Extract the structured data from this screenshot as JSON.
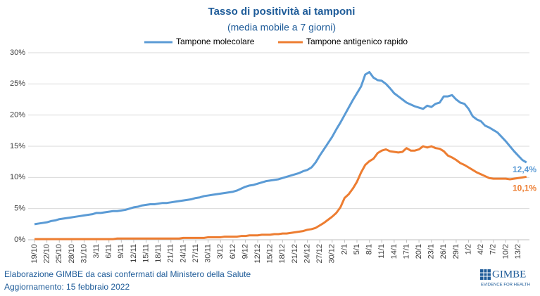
{
  "chart_data": {
    "type": "line",
    "title": "Tasso di positività ai tamponi",
    "subtitle": "(media mobile a 7 giorni)",
    "categories": [
      "19/10",
      null,
      null,
      "22/10",
      null,
      null,
      "25/10",
      null,
      null,
      "28/10",
      null,
      null,
      "31/10",
      null,
      null,
      "3/11",
      null,
      null,
      "6/11",
      null,
      null,
      "9/11",
      null,
      null,
      "12/11",
      null,
      null,
      "15/11",
      null,
      null,
      "18/11",
      null,
      null,
      "21/11",
      null,
      null,
      "24/11",
      null,
      null,
      "27/11",
      null,
      null,
      "30/11",
      null,
      null,
      "3/12",
      null,
      null,
      "6/12",
      null,
      null,
      "9/12",
      null,
      null,
      "12/12",
      null,
      null,
      "15/12",
      null,
      null,
      "18/12",
      null,
      null,
      "21/12",
      null,
      null,
      "24/12",
      null,
      null,
      "27/12",
      null,
      null,
      "30/12",
      null,
      null,
      "2/1",
      null,
      null,
      "5/1",
      null,
      null,
      "8/1",
      null,
      null,
      "11/1",
      null,
      null,
      "14/1",
      null,
      null,
      "17/1",
      null,
      null,
      "20/1",
      null,
      null,
      "23/1",
      null,
      null,
      "26/1",
      null,
      null,
      "29/1",
      null,
      null,
      "1/2",
      null,
      null,
      "4/2",
      null,
      null,
      "7/2",
      null,
      null,
      "10/2",
      null,
      null,
      "13/2",
      null,
      null
    ],
    "series": [
      {
        "name": "Tampone molecolare",
        "color": "#5b9bd5",
        "values": [
          2.5,
          2.6,
          2.7,
          2.8,
          3.0,
          3.1,
          3.3,
          3.4,
          3.5,
          3.6,
          3.7,
          3.8,
          3.9,
          4.0,
          4.1,
          4.3,
          4.3,
          4.4,
          4.5,
          4.6,
          4.6,
          4.7,
          4.8,
          5.0,
          5.2,
          5.3,
          5.5,
          5.6,
          5.7,
          5.7,
          5.8,
          5.9,
          5.9,
          6.0,
          6.1,
          6.2,
          6.3,
          6.4,
          6.5,
          6.7,
          6.8,
          7.0,
          7.1,
          7.2,
          7.3,
          7.4,
          7.5,
          7.6,
          7.7,
          7.9,
          8.2,
          8.5,
          8.7,
          8.8,
          9.0,
          9.2,
          9.4,
          9.5,
          9.6,
          9.7,
          9.9,
          10.1,
          10.3,
          10.5,
          10.7,
          11.0,
          11.2,
          11.6,
          12.4,
          13.5,
          14.5,
          15.5,
          16.5,
          17.7,
          18.8,
          20.0,
          21.2,
          22.4,
          23.5,
          24.6,
          26.5,
          26.9,
          26.0,
          25.6,
          25.5,
          25.0,
          24.3,
          23.5,
          23.0,
          22.5,
          22.0,
          21.7,
          21.4,
          21.2,
          21.0,
          21.5,
          21.3,
          21.8,
          22.0,
          23.0,
          23.0,
          23.2,
          22.5,
          22.0,
          21.8,
          21.0,
          19.8,
          19.3,
          19.0,
          18.3,
          18.0,
          17.6,
          17.2,
          16.5,
          15.8,
          15.0,
          14.2,
          13.5,
          12.8,
          12.4
        ],
        "value_labels": [
          null,
          null,
          null,
          null,
          null,
          null,
          null,
          null,
          null,
          null,
          null,
          null,
          null,
          null,
          null,
          null,
          null,
          null,
          null,
          null,
          null,
          null,
          null,
          null,
          null,
          null,
          null,
          null,
          null,
          null,
          null,
          null,
          null,
          null,
          null,
          null,
          null,
          null,
          null,
          null,
          null,
          null,
          null,
          null,
          null,
          null,
          null,
          null,
          null,
          null,
          null,
          null,
          null,
          null,
          null,
          null,
          null,
          null,
          null,
          null,
          null,
          null,
          null,
          null,
          null,
          null,
          null,
          null,
          null,
          null,
          null,
          null,
          null,
          null,
          null,
          null,
          null,
          null,
          null,
          null,
          null,
          null,
          null,
          null,
          null,
          null,
          null,
          null,
          null,
          null,
          null,
          null,
          null,
          null,
          null,
          null,
          null,
          null,
          null,
          null,
          null,
          null,
          null,
          null,
          null,
          null,
          null,
          null,
          null,
          null,
          null,
          null,
          null,
          null,
          null,
          null,
          null,
          null,
          null,
          "12,4%"
        ]
      },
      {
        "name": "Tampone antigenico rapido",
        "color": "#ed7d31",
        "values": [
          0.1,
          0.1,
          0.1,
          0.1,
          0.1,
          0.1,
          0.1,
          0.1,
          0.1,
          0.1,
          0.1,
          0.1,
          0.1,
          0.1,
          0.1,
          0.1,
          0.1,
          0.1,
          0.1,
          0.1,
          0.2,
          0.2,
          0.2,
          0.2,
          0.2,
          0.2,
          0.2,
          0.2,
          0.2,
          0.2,
          0.2,
          0.2,
          0.2,
          0.2,
          0.2,
          0.2,
          0.3,
          0.3,
          0.3,
          0.3,
          0.3,
          0.3,
          0.4,
          0.4,
          0.4,
          0.4,
          0.5,
          0.5,
          0.5,
          0.5,
          0.6,
          0.6,
          0.7,
          0.7,
          0.7,
          0.8,
          0.8,
          0.8,
          0.9,
          0.9,
          1.0,
          1.0,
          1.1,
          1.2,
          1.3,
          1.4,
          1.6,
          1.7,
          1.9,
          2.3,
          2.7,
          3.2,
          3.7,
          4.3,
          5.2,
          6.7,
          7.3,
          8.2,
          9.3,
          10.8,
          12.0,
          12.6,
          13.0,
          13.9,
          14.3,
          14.5,
          14.2,
          14.1,
          14.0,
          14.1,
          14.7,
          14.3,
          14.3,
          14.5,
          15.0,
          14.8,
          15.0,
          14.7,
          14.6,
          14.2,
          13.5,
          13.2,
          12.8,
          12.3,
          12.0,
          11.6,
          11.2,
          10.8,
          10.5,
          10.2,
          9.9,
          9.8,
          9.8,
          9.8,
          9.8,
          9.7,
          9.8,
          9.9,
          10.0,
          10.1
        ],
        "value_labels": [
          null,
          null,
          null,
          null,
          null,
          null,
          null,
          null,
          null,
          null,
          null,
          null,
          null,
          null,
          null,
          null,
          null,
          null,
          null,
          null,
          null,
          null,
          null,
          null,
          null,
          null,
          null,
          null,
          null,
          null,
          null,
          null,
          null,
          null,
          null,
          null,
          null,
          null,
          null,
          null,
          null,
          null,
          null,
          null,
          null,
          null,
          null,
          null,
          null,
          null,
          null,
          null,
          null,
          null,
          null,
          null,
          null,
          null,
          null,
          null,
          null,
          null,
          null,
          null,
          null,
          null,
          null,
          null,
          null,
          null,
          null,
          null,
          null,
          null,
          null,
          null,
          null,
          null,
          null,
          null,
          null,
          null,
          null,
          null,
          null,
          null,
          null,
          null,
          null,
          null,
          null,
          null,
          null,
          null,
          null,
          null,
          null,
          null,
          null,
          null,
          null,
          null,
          null,
          null,
          null,
          null,
          null,
          null,
          null,
          null,
          null,
          null,
          null,
          null,
          null,
          null,
          null,
          null,
          null,
          "10,1%"
        ]
      }
    ],
    "ylim": [
      0,
      30
    ],
    "yticks": [
      {
        "value": 0,
        "label": "0%"
      },
      {
        "value": 5,
        "label": "5%"
      },
      {
        "value": 10,
        "label": "10%"
      },
      {
        "value": 15,
        "label": "15%"
      },
      {
        "value": 20,
        "label": "20%"
      },
      {
        "value": 25,
        "label": "25%"
      },
      {
        "value": 30,
        "label": "30%"
      }
    ],
    "grid": true,
    "legend": "top"
  },
  "footer": {
    "source": "Elaborazione GIMBE da casi confermati dal Ministero della Salute",
    "updated": "Aggiornamento: 15 febbraio 2022",
    "logo": "GIMBE",
    "logo_tagline": "EVIDENCE FOR HEALTH"
  }
}
